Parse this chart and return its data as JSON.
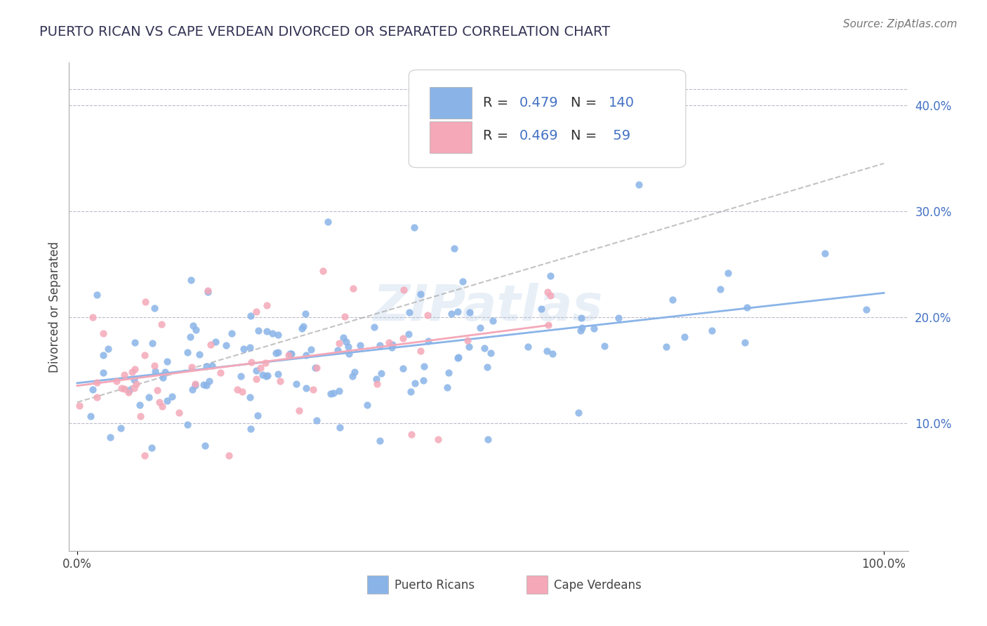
{
  "title": "PUERTO RICAN VS CAPE VERDEAN DIVORCED OR SEPARATED CORRELATION CHART",
  "source": "Source: ZipAtlas.com",
  "ylabel": "Divorced or Separated",
  "xlim": [
    0,
    1
  ],
  "ylim": [
    -0.02,
    0.44
  ],
  "ytick_vals": [
    0.1,
    0.2,
    0.3,
    0.4
  ],
  "ytick_labels": [
    "10.0%",
    "20.0%",
    "30.0%",
    "40.0%"
  ],
  "xtick_vals": [
    0.0,
    1.0
  ],
  "xtick_labels": [
    "0.0%",
    "100.0%"
  ],
  "legend_R1": "0.479",
  "legend_N1": "140",
  "legend_R2": "0.469",
  "legend_N2": "59",
  "color_blue": "#8AB4E8",
  "color_pink": "#F4A8B8",
  "color_blue_text": "#4472C4",
  "watermark_text": "ZIPatlas",
  "legend_label_blue": "Puerto Ricans",
  "legend_label_pink": "Cape Verdeans",
  "blue_n": 140,
  "pink_n": 59,
  "blue_r": 0.479,
  "pink_r": 0.469
}
